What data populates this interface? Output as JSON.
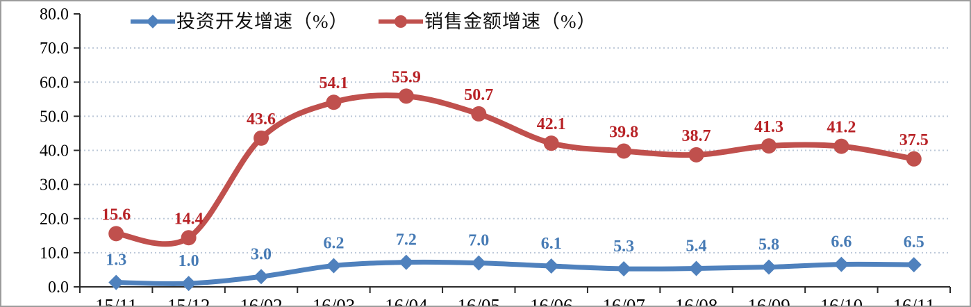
{
  "chart_data": {
    "type": "line",
    "categories": [
      "15/11",
      "15/12",
      "16/02",
      "16/03",
      "16/04",
      "16/05",
      "16/06",
      "16/07",
      "16/08",
      "16/09",
      "16/10",
      "16/11"
    ],
    "series": [
      {
        "name": "投资开发增速（%）",
        "marker": "diamond",
        "color": "#4f81bd",
        "label_color": "#477bb5",
        "values": [
          1.3,
          1.0,
          3.0,
          6.2,
          7.2,
          7.0,
          6.1,
          5.3,
          5.4,
          5.8,
          6.6,
          6.5
        ]
      },
      {
        "name": "销售金额增速（%）",
        "marker": "circle",
        "color": "#c0504d",
        "label_color": "#b82327",
        "values": [
          15.6,
          14.4,
          43.6,
          54.1,
          55.9,
          50.7,
          42.1,
          39.8,
          38.7,
          41.3,
          41.2,
          37.5
        ]
      }
    ],
    "title": "",
    "xlabel": "",
    "ylabel": "",
    "ylim": [
      0,
      80
    ],
    "ytick_step": 10,
    "ytick_labels": [
      "0.0",
      "10.0",
      "20.0",
      "30.0",
      "40.0",
      "50.0",
      "60.0",
      "70.0",
      "80.0"
    ],
    "grid": "horizontal-dotted",
    "smooth_lines": true,
    "data_labels": "above-points",
    "legend_position": "top-inside",
    "colors": {
      "grid": "#bcc8d8",
      "axis": "#2b2b2b",
      "tick_label": "#000000",
      "background": "#ffffff",
      "border": "#9c9c9c"
    }
  }
}
